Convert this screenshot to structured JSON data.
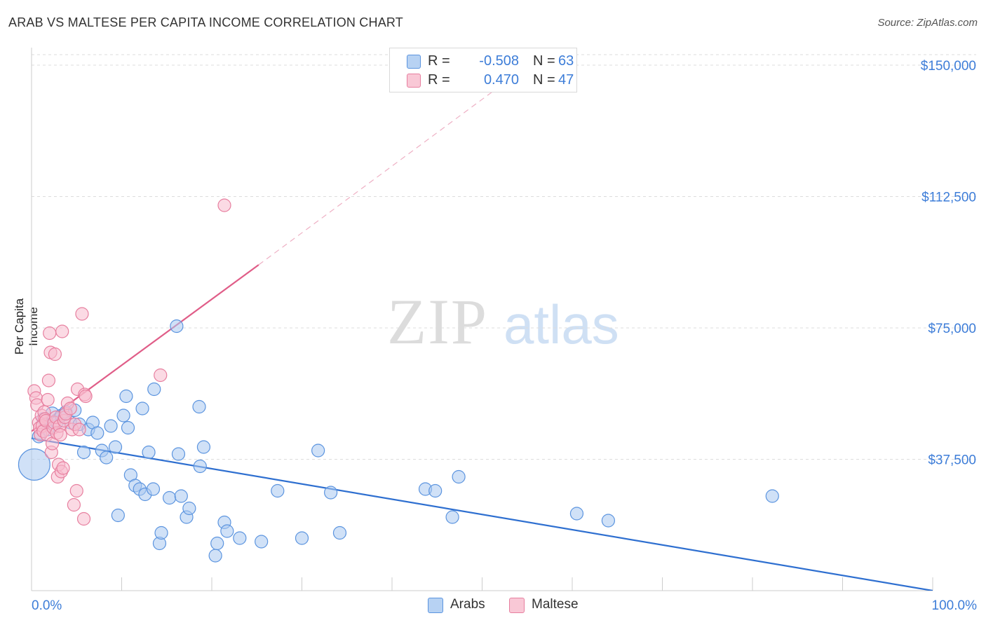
{
  "title": "ARAB VS MALTESE PER CAPITA INCOME CORRELATION CHART",
  "source": "Source: ZipAtlas.com",
  "watermark": {
    "zip": "ZIP",
    "atlas": "atlas"
  },
  "legend": {
    "rows": [
      {
        "r_label": "R =",
        "r_value": "-0.508",
        "n_label": "N =",
        "n_value": "63"
      },
      {
        "r_label": "R =",
        "r_value": "0.470",
        "n_label": "N =",
        "n_value": "47"
      }
    ]
  },
  "bottom_legend": {
    "arabs": "Arabs",
    "maltese": "Maltese"
  },
  "colors": {
    "arab_fill": "#a9c8f0",
    "arab_stroke": "#5b94df",
    "arab_line": "#2e6fd0",
    "maltese_fill": "#f7bccd",
    "maltese_stroke": "#e77f9f",
    "maltese_line": "#e05d88",
    "axis_text": "#3d7dd8",
    "grid": "#dddddd"
  },
  "chart_data": {
    "type": "scatter",
    "title": "ARAB VS MALTESE PER CAPITA INCOME CORRELATION CHART",
    "xlabel": "",
    "ylabel": "Per Capita Income",
    "xlim": [
      0,
      100
    ],
    "ylim": [
      0,
      153000
    ],
    "x_tick_labels": [
      "0.0%",
      "100.0%"
    ],
    "y_ticks": [
      37500,
      75000,
      112500,
      150000
    ],
    "y_tick_labels": [
      "$37,500",
      "$75,000",
      "$112,500",
      "$150,000"
    ],
    "series": [
      {
        "name": "Arabs",
        "r": -0.508,
        "n": 63,
        "trend": {
          "x0": 0,
          "y0": 43500,
          "x1": 100,
          "y1": 0
        },
        "points": [
          [
            0.3,
            36000,
            14
          ],
          [
            0.8,
            44000,
            5
          ],
          [
            1.3,
            49000,
            5
          ],
          [
            1.8,
            46000,
            5
          ],
          [
            2.3,
            50500,
            6
          ],
          [
            2.8,
            48000,
            5
          ],
          [
            3.3,
            50000,
            5
          ],
          [
            3.8,
            51000,
            5
          ],
          [
            4.3,
            48000,
            5
          ],
          [
            4.8,
            51500,
            5
          ],
          [
            5.3,
            47500,
            5
          ],
          [
            5.8,
            39500,
            5
          ],
          [
            6.3,
            46000,
            5
          ],
          [
            6.8,
            48000,
            5
          ],
          [
            7.3,
            45000,
            5
          ],
          [
            7.8,
            40000,
            5
          ],
          [
            8.3,
            38000,
            5
          ],
          [
            8.8,
            47000,
            5
          ],
          [
            9.3,
            41000,
            5
          ],
          [
            9.6,
            21500,
            5
          ],
          [
            10.2,
            50000,
            5
          ],
          [
            10.5,
            55500,
            5
          ],
          [
            10.7,
            46500,
            5
          ],
          [
            11.0,
            33000,
            5
          ],
          [
            11.5,
            30000,
            5
          ],
          [
            12.0,
            29000,
            5
          ],
          [
            12.3,
            52000,
            5
          ],
          [
            12.6,
            27500,
            5
          ],
          [
            13.0,
            39500,
            5
          ],
          [
            13.5,
            29000,
            5
          ],
          [
            13.6,
            57500,
            5
          ],
          [
            14.2,
            13500,
            5
          ],
          [
            14.4,
            16500,
            5
          ],
          [
            15.3,
            26500,
            5
          ],
          [
            16.1,
            75500,
            5
          ],
          [
            16.3,
            39000,
            5
          ],
          [
            16.6,
            27000,
            5
          ],
          [
            17.2,
            21000,
            5
          ],
          [
            17.5,
            23500,
            5
          ],
          [
            18.6,
            52500,
            5
          ],
          [
            18.7,
            35500,
            5
          ],
          [
            19.1,
            41000,
            5
          ],
          [
            20.4,
            10000,
            5
          ],
          [
            20.6,
            13500,
            5
          ],
          [
            21.4,
            19500,
            5
          ],
          [
            21.7,
            17000,
            5
          ],
          [
            23.1,
            15000,
            5
          ],
          [
            25.5,
            14000,
            5
          ],
          [
            27.3,
            28500,
            5
          ],
          [
            30.0,
            15000,
            5
          ],
          [
            31.8,
            40000,
            5
          ],
          [
            33.2,
            28000,
            5
          ],
          [
            34.2,
            16500,
            5
          ],
          [
            43.7,
            29000,
            5
          ],
          [
            44.8,
            28500,
            5
          ],
          [
            46.7,
            21000,
            5
          ],
          [
            47.4,
            32500,
            5
          ],
          [
            60.5,
            22000,
            5
          ],
          [
            64.0,
            20000,
            5
          ],
          [
            82.2,
            27000,
            5
          ]
        ]
      },
      {
        "name": "Maltese",
        "r": 0.47,
        "n": 47,
        "trend": {
          "x0": 0,
          "y0": 45500,
          "x1": 25.2,
          "y1": 93000,
          "x_dash_end": 100,
          "y_dash_end": 235500
        },
        "points": [
          [
            0.3,
            57000,
            5
          ],
          [
            0.5,
            55000,
            5
          ],
          [
            0.6,
            53000,
            5
          ],
          [
            0.8,
            48000,
            5
          ],
          [
            0.9,
            46500,
            5
          ],
          [
            1.0,
            44500,
            5
          ],
          [
            1.1,
            50000,
            5
          ],
          [
            1.2,
            47000,
            5
          ],
          [
            1.3,
            45500,
            5
          ],
          [
            1.4,
            51000,
            5
          ],
          [
            1.5,
            49000,
            5
          ],
          [
            1.6,
            48500,
            5
          ],
          [
            1.7,
            44500,
            5
          ],
          [
            1.8,
            54500,
            5
          ],
          [
            1.9,
            60000,
            5
          ],
          [
            2.0,
            73500,
            5
          ],
          [
            2.1,
            68000,
            5
          ],
          [
            2.2,
            39500,
            5
          ],
          [
            2.3,
            42000,
            5
          ],
          [
            2.4,
            46500,
            5
          ],
          [
            2.5,
            48000,
            5
          ],
          [
            2.6,
            67500,
            5
          ],
          [
            2.7,
            49500,
            5
          ],
          [
            2.8,
            45000,
            5
          ],
          [
            2.9,
            32500,
            5
          ],
          [
            3.0,
            36000,
            5
          ],
          [
            3.1,
            47000,
            5
          ],
          [
            3.2,
            44500,
            5
          ],
          [
            3.3,
            34000,
            5
          ],
          [
            3.4,
            74000,
            5
          ],
          [
            3.5,
            35000,
            5
          ],
          [
            3.6,
            48500,
            5
          ],
          [
            3.7,
            49500,
            5
          ],
          [
            3.8,
            50500,
            5
          ],
          [
            4.0,
            53500,
            5
          ],
          [
            4.3,
            52000,
            5
          ],
          [
            4.5,
            46000,
            5
          ],
          [
            4.7,
            24500,
            5
          ],
          [
            4.8,
            47500,
            5
          ],
          [
            5.0,
            28500,
            5
          ],
          [
            5.1,
            57500,
            5
          ],
          [
            5.3,
            46000,
            5
          ],
          [
            5.6,
            79000,
            5
          ],
          [
            5.8,
            20500,
            5
          ],
          [
            5.9,
            56000,
            5
          ],
          [
            6.0,
            55500,
            5
          ],
          [
            14.3,
            61500,
            5
          ],
          [
            21.4,
            110000,
            5
          ]
        ]
      }
    ]
  }
}
